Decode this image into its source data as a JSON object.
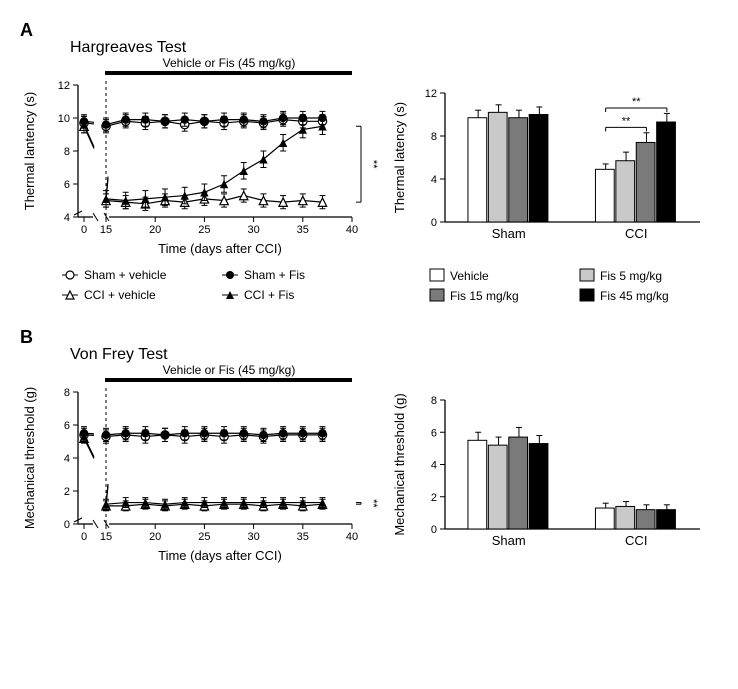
{
  "panelA": {
    "letter": "A",
    "title": "Hargreaves Test",
    "timecourse": {
      "type": "line",
      "xlabel": "Time (days after CCI)",
      "ylabel": "Thermal lantency (s)",
      "treatment_label": "Vehicle or Fis (45 mg/kg)",
      "x_ticks": [
        0,
        15,
        20,
        25,
        30,
        35,
        40
      ],
      "y_ticks": [
        4,
        6,
        8,
        10,
        12
      ],
      "x_break_after": 0,
      "treatment_start": 15,
      "series": {
        "sham_vehicle": {
          "marker": "open-circle",
          "color": "#000000",
          "points": [
            [
              0,
              9.7
            ],
            [
              15,
              9.5
            ],
            [
              17,
              9.8
            ],
            [
              19,
              9.7
            ],
            [
              21,
              9.8
            ],
            [
              23,
              9.6
            ],
            [
              25,
              9.8
            ],
            [
              27,
              9.7
            ],
            [
              29,
              9.8
            ],
            [
              31,
              9.7
            ],
            [
              33,
              9.9
            ],
            [
              35,
              9.8
            ],
            [
              37,
              9.8
            ]
          ],
          "err": 0.4
        },
        "sham_fis": {
          "marker": "filled-circle",
          "color": "#000000",
          "points": [
            [
              0,
              9.8
            ],
            [
              15,
              9.6
            ],
            [
              17,
              9.9
            ],
            [
              19,
              9.9
            ],
            [
              21,
              9.8
            ],
            [
              23,
              9.9
            ],
            [
              25,
              9.8
            ],
            [
              27,
              9.9
            ],
            [
              29,
              9.9
            ],
            [
              31,
              9.8
            ],
            [
              33,
              10.0
            ],
            [
              35,
              10.0
            ],
            [
              37,
              10.0
            ]
          ],
          "err": 0.4
        },
        "cci_vehicle": {
          "marker": "open-triangle",
          "color": "#000000",
          "points": [
            [
              0,
              9.5
            ],
            [
              15,
              5.0
            ],
            [
              17,
              4.9
            ],
            [
              19,
              4.8
            ],
            [
              21,
              5.0
            ],
            [
              23,
              4.9
            ],
            [
              25,
              5.1
            ],
            [
              27,
              5.0
            ],
            [
              29,
              5.3
            ],
            [
              31,
              5.0
            ],
            [
              33,
              4.9
            ],
            [
              35,
              5.0
            ],
            [
              37,
              4.9
            ]
          ],
          "err": 0.4
        },
        "cci_fis": {
          "marker": "filled-triangle",
          "color": "#000000",
          "points": [
            [
              0,
              9.6
            ],
            [
              15,
              5.1
            ],
            [
              17,
              5.0
            ],
            [
              19,
              5.1
            ],
            [
              21,
              5.2
            ],
            [
              23,
              5.3
            ],
            [
              25,
              5.5
            ],
            [
              27,
              6.0
            ],
            [
              29,
              6.8
            ],
            [
              31,
              7.5
            ],
            [
              33,
              8.5
            ],
            [
              35,
              9.3
            ],
            [
              37,
              9.5
            ]
          ],
          "err": 0.5
        }
      },
      "sig_marker": "**"
    },
    "bar": {
      "type": "bar",
      "ylabel": "Thermal latency (s)",
      "y_ticks": [
        0,
        4,
        8,
        12
      ],
      "groups": [
        "Sham",
        "CCI"
      ],
      "conditions": [
        "Vehicle",
        "Fis 5 mg/kg",
        "Fis 15 mg/kg",
        "Fis 45 mg/kg"
      ],
      "colors": [
        "#ffffff",
        "#c9c9c9",
        "#7a7a7a",
        "#000000"
      ],
      "values": {
        "Sham": [
          9.7,
          10.2,
          9.7,
          10.0
        ],
        "CCI": [
          4.9,
          5.7,
          7.4,
          9.3
        ]
      },
      "err": {
        "Sham": [
          0.7,
          0.7,
          0.7,
          0.7
        ],
        "CCI": [
          0.5,
          0.8,
          0.9,
          0.8
        ]
      },
      "sig": [
        {
          "group": "CCI",
          "from": 0,
          "to": 2,
          "label": "**",
          "y": 8.8
        },
        {
          "group": "CCI",
          "from": 0,
          "to": 3,
          "label": "**",
          "y": 10.6
        }
      ]
    }
  },
  "panelB": {
    "letter": "B",
    "title": "Von Frey Test",
    "timecourse": {
      "type": "line",
      "xlabel": "Time (days after CCI)",
      "ylabel": "Mechanical threshold (g)",
      "treatment_label": "Vehicle or Fis (45 mg/kg)",
      "x_ticks": [
        0,
        15,
        20,
        25,
        30,
        35,
        40
      ],
      "y_ticks": [
        0,
        2,
        4,
        6,
        8
      ],
      "x_break_after": 0,
      "treatment_start": 15,
      "series": {
        "sham_vehicle": {
          "marker": "open-circle",
          "color": "#000000",
          "points": [
            [
              0,
              5.4
            ],
            [
              15,
              5.3
            ],
            [
              17,
              5.4
            ],
            [
              19,
              5.3
            ],
            [
              21,
              5.4
            ],
            [
              23,
              5.3
            ],
            [
              25,
              5.4
            ],
            [
              27,
              5.3
            ],
            [
              29,
              5.4
            ],
            [
              31,
              5.3
            ],
            [
              33,
              5.4
            ],
            [
              35,
              5.4
            ],
            [
              37,
              5.4
            ]
          ],
          "err": 0.4
        },
        "sham_fis": {
          "marker": "filled-circle",
          "color": "#000000",
          "points": [
            [
              0,
              5.5
            ],
            [
              15,
              5.4
            ],
            [
              17,
              5.5
            ],
            [
              19,
              5.5
            ],
            [
              21,
              5.4
            ],
            [
              23,
              5.5
            ],
            [
              25,
              5.5
            ],
            [
              27,
              5.5
            ],
            [
              29,
              5.5
            ],
            [
              31,
              5.4
            ],
            [
              33,
              5.5
            ],
            [
              35,
              5.5
            ],
            [
              37,
              5.5
            ]
          ],
          "err": 0.4
        },
        "cci_vehicle": {
          "marker": "open-triangle",
          "color": "#000000",
          "points": [
            [
              0,
              5.2
            ],
            [
              15,
              1.1
            ],
            [
              17,
              1.1
            ],
            [
              19,
              1.2
            ],
            [
              21,
              1.1
            ],
            [
              23,
              1.2
            ],
            [
              25,
              1.1
            ],
            [
              27,
              1.2
            ],
            [
              29,
              1.2
            ],
            [
              31,
              1.1
            ],
            [
              33,
              1.2
            ],
            [
              35,
              1.1
            ],
            [
              37,
              1.2
            ]
          ],
          "err": 0.3
        },
        "cci_fis": {
          "marker": "filled-triangle",
          "color": "#000000",
          "points": [
            [
              0,
              5.3
            ],
            [
              15,
              1.2
            ],
            [
              17,
              1.3
            ],
            [
              19,
              1.3
            ],
            [
              21,
              1.2
            ],
            [
              23,
              1.3
            ],
            [
              25,
              1.3
            ],
            [
              27,
              1.3
            ],
            [
              29,
              1.3
            ],
            [
              31,
              1.3
            ],
            [
              33,
              1.3
            ],
            [
              35,
              1.3
            ],
            [
              37,
              1.3
            ]
          ],
          "err": 0.3
        }
      },
      "sig_marker": "**"
    },
    "bar": {
      "type": "bar",
      "ylabel": "Mechanical threshold (g)",
      "y_ticks": [
        0,
        2,
        4,
        6,
        8
      ],
      "groups": [
        "Sham",
        "CCI"
      ],
      "conditions": [
        "Vehicle",
        "Fis 5 mg/kg",
        "Fis 15 mg/kg",
        "Fis 45 mg/kg"
      ],
      "colors": [
        "#ffffff",
        "#c9c9c9",
        "#7a7a7a",
        "#000000"
      ],
      "values": {
        "Sham": [
          5.5,
          5.2,
          5.7,
          5.3
        ],
        "CCI": [
          1.3,
          1.4,
          1.2,
          1.2
        ]
      },
      "err": {
        "Sham": [
          0.5,
          0.5,
          0.6,
          0.5
        ],
        "CCI": [
          0.3,
          0.3,
          0.3,
          0.3
        ]
      },
      "sig": []
    }
  },
  "legend_line": {
    "items": [
      {
        "marker": "open-circle",
        "label": "Sham + vehicle"
      },
      {
        "marker": "filled-circle",
        "label": "Sham + Fis"
      },
      {
        "marker": "open-triangle",
        "label": "CCI + vehicle"
      },
      {
        "marker": "filled-triangle",
        "label": "CCI + Fis"
      }
    ]
  },
  "legend_bar": {
    "items": [
      {
        "color": "#ffffff",
        "label": "Vehicle"
      },
      {
        "color": "#7a7a7a",
        "label": "Fis 15 mg/kg"
      },
      {
        "color": "#c9c9c9",
        "label": "Fis 5 mg/kg"
      },
      {
        "color": "#000000",
        "label": "Fis 45 mg/kg"
      }
    ]
  },
  "style": {
    "axis_color": "#000000",
    "line_width": 1.2,
    "marker_size": 4.2,
    "err_cap": 3,
    "bar_width": 0.8,
    "ns": "http://www.w3.org/2000/svg"
  }
}
